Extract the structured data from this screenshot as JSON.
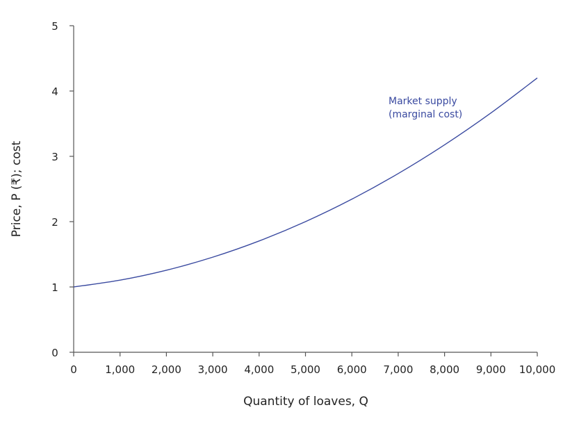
{
  "chart_data": {
    "type": "line",
    "title": "",
    "xlabel": "Quantity of loaves, Q",
    "ylabel": "Price, P (₹); cost",
    "xlim": [
      0,
      10000
    ],
    "ylim": [
      0,
      5
    ],
    "x_ticks": [
      0,
      1000,
      2000,
      3000,
      4000,
      5000,
      6000,
      7000,
      8000,
      9000,
      10000
    ],
    "x_tick_labels": [
      "0",
      "1,000",
      "2,000",
      "3,000",
      "4,000",
      "5,000",
      "6,000",
      "7,000",
      "8,000",
      "9,000",
      "10,000"
    ],
    "y_ticks": [
      0,
      1,
      2,
      3,
      4,
      5
    ],
    "y_tick_labels": [
      "0",
      "1",
      "2",
      "3",
      "4",
      "5"
    ],
    "grid": false,
    "series": [
      {
        "name": "Market supply (marginal cost)",
        "color": "#3a4aa0",
        "x": [
          0,
          1000,
          2000,
          3000,
          4000,
          5000,
          6000,
          7000,
          8000,
          9000,
          10000
        ],
        "values": [
          1.0,
          1.104,
          1.256,
          1.456,
          1.704,
          2.0,
          2.344,
          2.736,
          3.176,
          3.664,
          4.2
        ]
      }
    ],
    "annotations": [
      {
        "text_lines": [
          "Market supply",
          "(marginal cost)"
        ],
        "x": 6800,
        "y": 3.9,
        "color": "#3a4aa0"
      }
    ]
  }
}
